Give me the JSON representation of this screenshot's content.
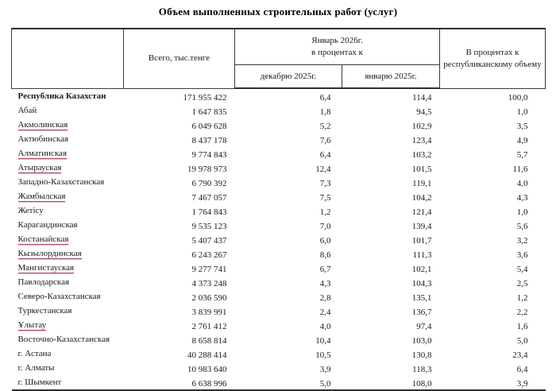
{
  "title": "Объем выполненных строительных работ (услуг)",
  "table": {
    "headers": {
      "region": "",
      "total": "Всего, тыс.тенге",
      "group_line1": "Январь 2026г.",
      "group_line2": "в процентах к",
      "sub_dec": "декабрю 2025г.",
      "sub_jan": "январю  2025г.",
      "republic": "В процентах к республиканскому объему"
    },
    "rows": [
      {
        "region": "Республика Казахстан",
        "total": "171 955 422",
        "to_dec": "6,4",
        "to_jan": "114,4",
        "share": "100,0",
        "bold": true,
        "link": false
      },
      {
        "region": "Абай",
        "total": "1 647 835",
        "to_dec": "1,8",
        "to_jan": "94,5",
        "share": "1,0",
        "bold": false,
        "link": false
      },
      {
        "region": "Акмолинская",
        "total": "6 049 628",
        "to_dec": "5,2",
        "to_jan": "102,9",
        "share": "3,5",
        "bold": false,
        "link": true
      },
      {
        "region": "Актюбинская",
        "total": "8 437 178",
        "to_dec": "7,6",
        "to_jan": "123,4",
        "share": "4,9",
        "bold": false,
        "link": false
      },
      {
        "region": "Алматинская",
        "total": "9 774 843",
        "to_dec": "6,4",
        "to_jan": "103,2",
        "share": "5,7",
        "bold": false,
        "link": true
      },
      {
        "region": "Атырауская",
        "total": "19 978 973",
        "to_dec": "12,4",
        "to_jan": "101,5",
        "share": "11,6",
        "bold": false,
        "link": true
      },
      {
        "region": "Западно-Казахстанская",
        "total": "6 790 392",
        "to_dec": "7,3",
        "to_jan": "119,1",
        "share": "4,0",
        "bold": false,
        "link": false
      },
      {
        "region": "Жамбылская",
        "total": "7 467 057",
        "to_dec": "7,5",
        "to_jan": "104,2",
        "share": "4,3",
        "bold": false,
        "link": true
      },
      {
        "region": "Жетісу",
        "total": "1 764 843",
        "to_dec": "1,2",
        "to_jan": "121,4",
        "share": "1,0",
        "bold": false,
        "link": false
      },
      {
        "region": "Карагандинская",
        "total": "9 535 123",
        "to_dec": "7,0",
        "to_jan": "139,4",
        "share": "5,6",
        "bold": false,
        "link": false
      },
      {
        "region": "Костанайская",
        "total": "5 407 437",
        "to_dec": "6,0",
        "to_jan": "101,7",
        "share": "3,2",
        "bold": false,
        "link": true
      },
      {
        "region": "Кызылординская",
        "total": "6 243 267",
        "to_dec": "8,6",
        "to_jan": "111,3",
        "share": "3,6",
        "bold": false,
        "link": true
      },
      {
        "region": "Мангистауская",
        "total": "9 277 741",
        "to_dec": "6,7",
        "to_jan": "102,1",
        "share": "5,4",
        "bold": false,
        "link": true
      },
      {
        "region": "Павлодарская",
        "total": "4 373 248",
        "to_dec": "4,3",
        "to_jan": "104,3",
        "share": "2,5",
        "bold": false,
        "link": false
      },
      {
        "region": "Северо-Казахстанская",
        "total": "2 036 590",
        "to_dec": "2,8",
        "to_jan": "135,1",
        "share": "1,2",
        "bold": false,
        "link": false
      },
      {
        "region": "Туркестанская",
        "total": "3 839 991",
        "to_dec": "2,4",
        "to_jan": "136,7",
        "share": "2,2",
        "bold": false,
        "link": false
      },
      {
        "region": "Ұлытау",
        "total": "2 761 412",
        "to_dec": "4,0",
        "to_jan": "97,4",
        "share": "1,6",
        "bold": false,
        "link": true
      },
      {
        "region": "Восточно-Казахстанская",
        "total": "8 658 814",
        "to_dec": "10,4",
        "to_jan": "103,0",
        "share": "5,0",
        "bold": false,
        "link": false
      },
      {
        "region": "г. Астана",
        "total": "40 288 414",
        "to_dec": "10,5",
        "to_jan": "130,8",
        "share": "23,4",
        "bold": false,
        "link": false
      },
      {
        "region": "г. Алматы",
        "total": "10 983 640",
        "to_dec": "3,9",
        "to_jan": "118,3",
        "share": "6,4",
        "bold": false,
        "link": false
      },
      {
        "region": "г. Шымкент",
        "total": "6 638 996",
        "to_dec": "5,0",
        "to_jan": "108,0",
        "share": "3,9",
        "bold": false,
        "link": false
      }
    ]
  },
  "colors": {
    "text": "#1a1a1a",
    "border": "#2e2e2e",
    "link_underline": "#b04a58"
  }
}
